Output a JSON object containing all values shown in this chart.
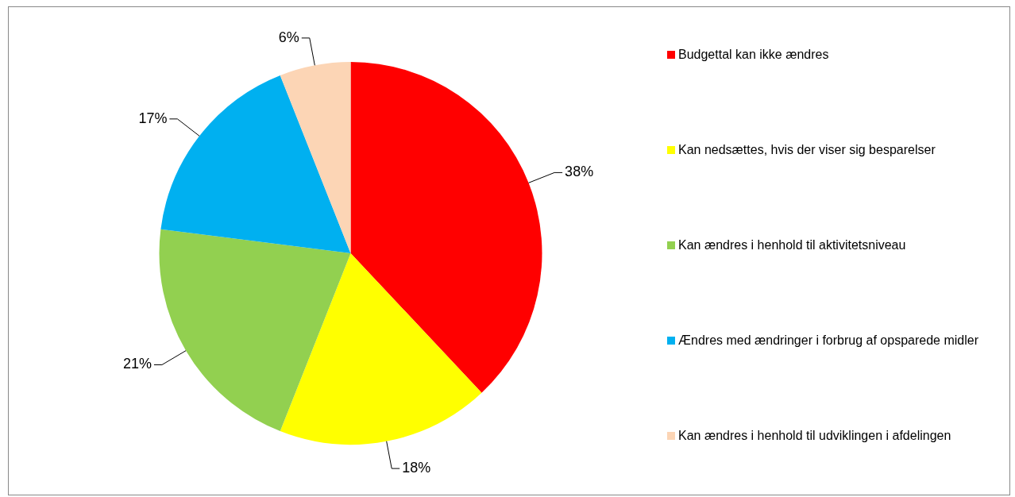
{
  "chart_data": {
    "type": "pie",
    "categories": [
      "Budgettal kan ikke ændres",
      "Kan nedsættes, hvis der viser sig besparelser",
      "Kan ændres i henhold til aktivitetsniveau",
      "Ændres med ændringer i forbrug af opsparede midler",
      "Kan ændres i henhold til udviklingen i afdelingen"
    ],
    "values": [
      38,
      18,
      21,
      17,
      6
    ],
    "colors": [
      "#ff0000",
      "#ffff00",
      "#92d050",
      "#00b0f0",
      "#fcd5b5"
    ],
    "value_labels": [
      "38%",
      "18%",
      "21%",
      "17%",
      "6%"
    ],
    "legend": "right"
  }
}
